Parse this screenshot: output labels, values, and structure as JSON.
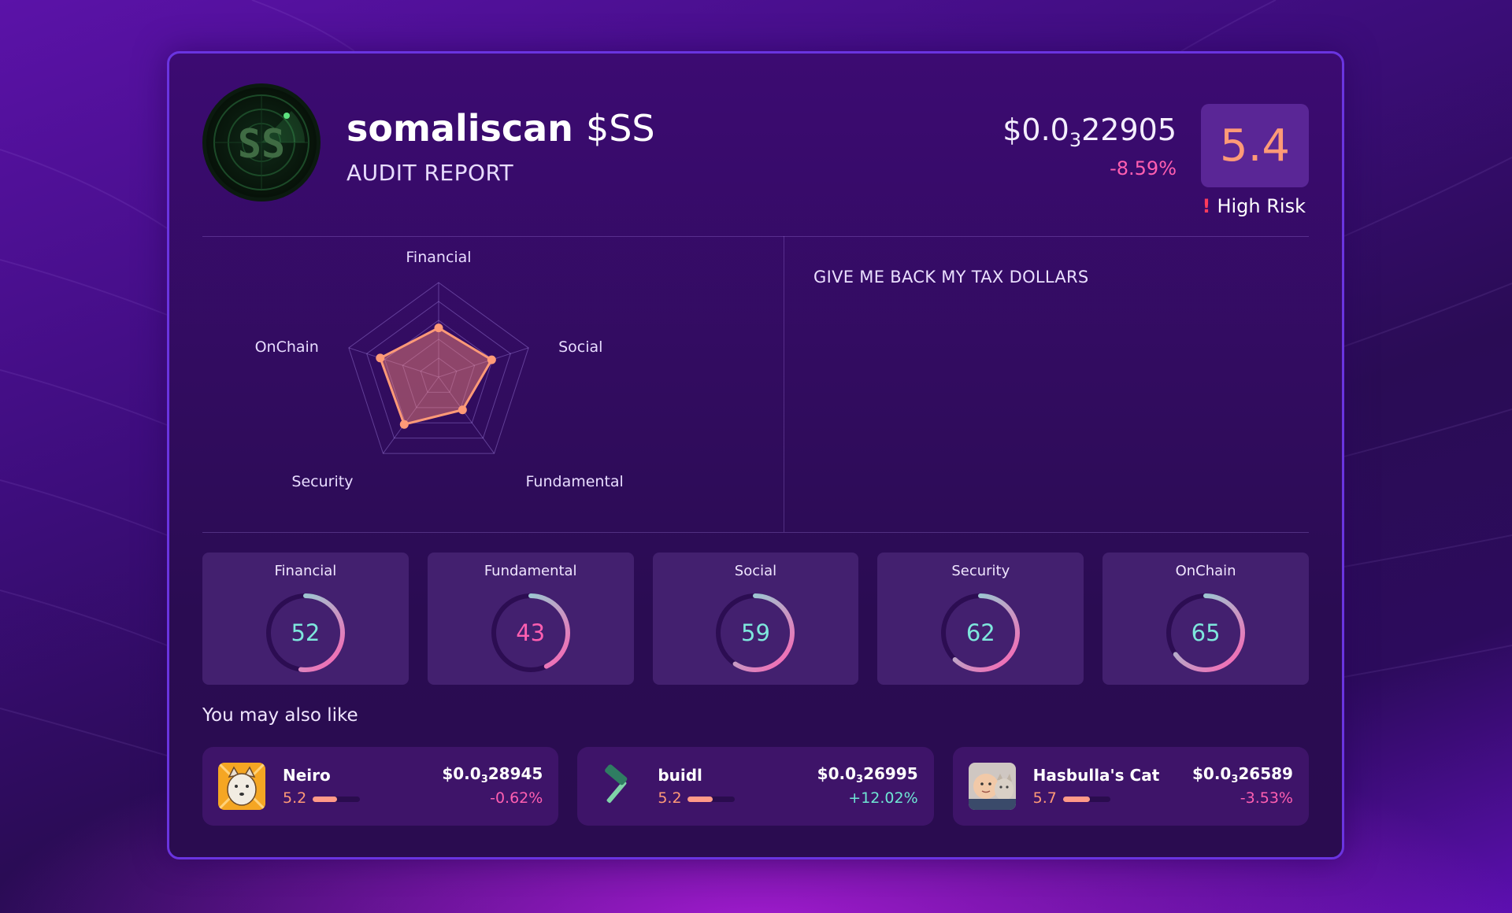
{
  "token": {
    "name": "somaliscan",
    "ticker": "$SS",
    "logo_text": "SS",
    "subtitle": "AUDIT REPORT",
    "price_prefix": "$0.0",
    "price_zeros": "3",
    "price_digits": "22905",
    "change": "-8.59%",
    "score": "5.4",
    "risk_label": "High Risk"
  },
  "description": "GIVE ME BACK MY TAX DOLLARS",
  "chart_data": {
    "type": "radar",
    "axes": [
      "Financial",
      "Social",
      "Fundamental",
      "Security",
      "OnChain"
    ],
    "values": [
      52,
      59,
      43,
      62,
      65
    ],
    "range": [
      0,
      100
    ],
    "color": "#ff9a77"
  },
  "scores": [
    {
      "label": "Financial",
      "value": 52,
      "color": "#7ee7dc"
    },
    {
      "label": "Fundamental",
      "value": 43,
      "color": "#ff5fb1"
    },
    {
      "label": "Social",
      "value": 59,
      "color": "#7ee7dc"
    },
    {
      "label": "Security",
      "value": 62,
      "color": "#7ee7dc"
    },
    {
      "label": "OnChain",
      "value": 65,
      "color": "#7ee7dc"
    }
  ],
  "recommendations_title": "You may also like",
  "recommendations": [
    {
      "name": "Neiro",
      "score": "5.2",
      "score_value": 0.52,
      "price_prefix": "$0.0",
      "price_zeros": "3",
      "price_digits": "28945",
      "change": "-0.62%",
      "trend": "neg",
      "icon": "shiba-dog-icon"
    },
    {
      "name": "buidl",
      "score": "5.2",
      "score_value": 0.52,
      "price_prefix": "$0.0",
      "price_zeros": "3",
      "price_digits": "26995",
      "change": "+12.02%",
      "trend": "pos",
      "icon": "hammer-icon"
    },
    {
      "name": "Hasbulla's Cat",
      "score": "5.7",
      "score_value": 0.57,
      "price_prefix": "$0.0",
      "price_zeros": "3",
      "price_digits": "26589",
      "change": "-3.53%",
      "trend": "neg",
      "icon": "child-with-cat-icon"
    }
  ]
}
